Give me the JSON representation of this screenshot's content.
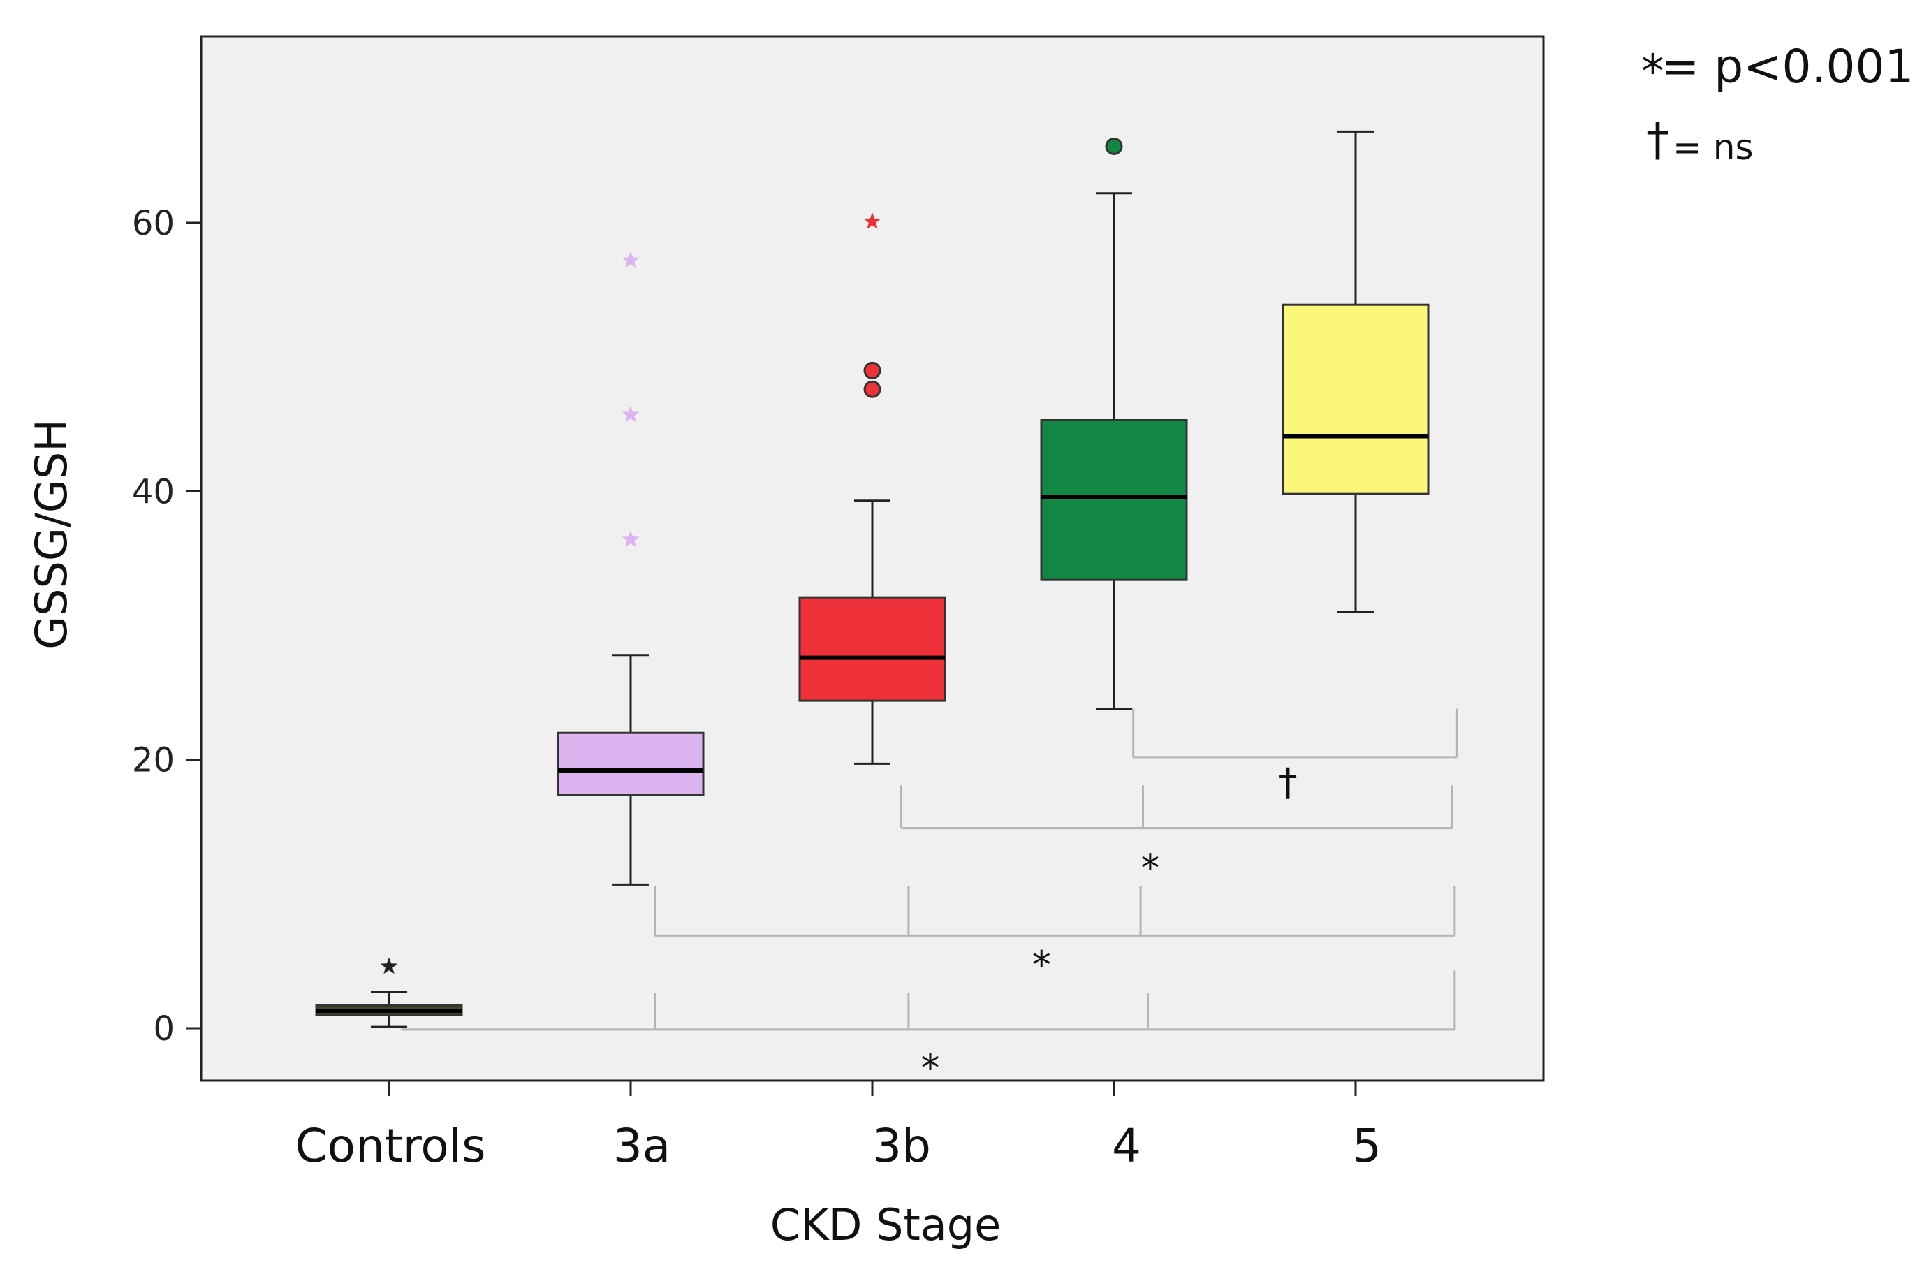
{
  "chart_data": {
    "type": "box",
    "xlabel": "CKD Stage",
    "ylabel": "GSSG/GSH",
    "ylim": [
      -4,
      74
    ],
    "yticks": [
      0,
      20,
      40,
      60
    ],
    "categories": [
      "Controls",
      "3a",
      "3b",
      "4",
      "5"
    ],
    "boxes": [
      {
        "category": "Controls",
        "whisker_low": 0.1,
        "q1": 1.0,
        "median": 1.3,
        "q3": 1.7,
        "whisker_high": 2.7,
        "color": "#3c4a1c",
        "outliers": [
          {
            "y": 4.6,
            "marker": "star",
            "color": "#222222"
          }
        ]
      },
      {
        "category": "3a",
        "whisker_low": 10.7,
        "q1": 17.4,
        "median": 19.2,
        "q3": 22.0,
        "whisker_high": 27.8,
        "color": "#dcb4f0",
        "outliers": [
          {
            "y": 57.2,
            "marker": "star",
            "color": "#dcb4f0"
          },
          {
            "y": 45.7,
            "marker": "star",
            "color": "#dcb4f0"
          },
          {
            "y": 36.4,
            "marker": "star",
            "color": "#dcb4f0"
          }
        ]
      },
      {
        "category": "3b",
        "whisker_low": 19.7,
        "q1": 24.4,
        "median": 27.6,
        "q3": 32.1,
        "whisker_high": 39.3,
        "color": "#ee3138",
        "outliers": [
          {
            "y": 60.1,
            "marker": "star",
            "color": "#ee3138"
          },
          {
            "y": 49.0,
            "marker": "circle",
            "color": "#ee3138"
          },
          {
            "y": 47.6,
            "marker": "circle",
            "color": "#ee3138"
          }
        ]
      },
      {
        "category": "4",
        "whisker_low": 23.8,
        "q1": 33.4,
        "median": 39.6,
        "q3": 45.3,
        "whisker_high": 62.2,
        "color": "#138744",
        "outliers": [
          {
            "y": 65.7,
            "marker": "circle",
            "color": "#138744"
          }
        ]
      },
      {
        "category": "5",
        "whisker_low": 31.0,
        "q1": 39.8,
        "median": 44.1,
        "q3": 53.9,
        "whisker_high": 66.8,
        "color": "#fbf77a",
        "outliers": []
      }
    ],
    "legend": [
      {
        "symbol": "*",
        "text": "= p<0.001"
      },
      {
        "symbol": "†",
        "text": "=  ns"
      }
    ],
    "comparison_brackets": [
      {
        "y": 20.2,
        "tick_top": 23.8,
        "from": 4.08,
        "to": 5.42,
        "ticks": [
          4.08,
          5.42
        ],
        "label": "†",
        "label_x": 4.72,
        "label_y": 18.4
      },
      {
        "y": 14.9,
        "tick_top": 18.1,
        "from": 3.12,
        "to": 5.4,
        "ticks": [
          3.12,
          4.12,
          5.4
        ],
        "label": "*",
        "label_x": 4.15,
        "label_y": 12.0
      },
      {
        "y": 6.9,
        "tick_top": 10.6,
        "from": 2.1,
        "to": 5.41,
        "ticks": [
          2.1,
          3.15,
          4.11,
          5.41
        ],
        "label": "*",
        "label_x": 3.7,
        "label_y": 4.8
      },
      {
        "y": -0.1,
        "tick_top": 2.6,
        "from": 1.05,
        "to": 5.41,
        "ticks": [
          2.1,
          3.15,
          4.14,
          5.41
        ],
        "tick_top_last": 4.3,
        "label": "*",
        "label_x": 3.24,
        "label_y": -2.9
      }
    ]
  }
}
